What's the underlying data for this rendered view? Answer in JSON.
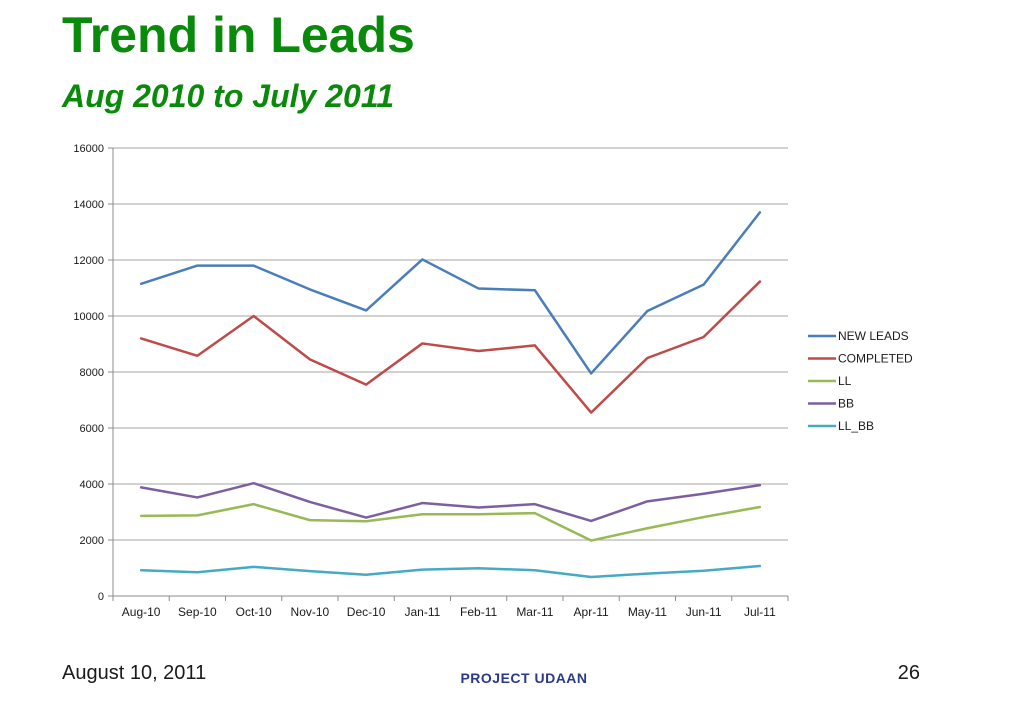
{
  "slide": {
    "title": "Trend in Leads",
    "subtitle": "Aug 2010 to July 2011",
    "date": "August 10, 2011",
    "project": "PROJECT UDAAN",
    "page_number": "26"
  },
  "chart_data": {
    "type": "line",
    "categories": [
      "Aug-10",
      "Sep-10",
      "Oct-10",
      "Nov-10",
      "Dec-10",
      "Jan-11",
      "Feb-11",
      "Mar-11",
      "Apr-11",
      "May-11",
      "Jun-11",
      "Jul-11"
    ],
    "ylim": [
      0,
      16000
    ],
    "yticks": [
      0,
      2000,
      4000,
      6000,
      8000,
      10000,
      12000,
      14000,
      16000
    ],
    "grid": true,
    "legend_position": "right",
    "series": [
      {
        "name": "NEW LEADS",
        "color": "#4a7ebb",
        "values": [
          11150,
          11800,
          11800,
          10950,
          10200,
          12020,
          10980,
          10920,
          7950,
          10180,
          11120,
          13700
        ]
      },
      {
        "name": "COMPLETED",
        "color": "#be4b48",
        "values": [
          9200,
          8580,
          10000,
          8450,
          7550,
          9020,
          8750,
          8950,
          6550,
          8500,
          9250,
          11230
        ]
      },
      {
        "name": "LL",
        "color": "#98b954",
        "values": [
          2860,
          2880,
          3280,
          2710,
          2670,
          2920,
          2920,
          2960,
          1980,
          2420,
          2820,
          3180
        ]
      },
      {
        "name": "BB",
        "color": "#7d5fa0",
        "values": [
          3880,
          3520,
          4030,
          3360,
          2800,
          3320,
          3160,
          3280,
          2680,
          3380,
          3650,
          3960
        ]
      },
      {
        "name": "LL_BB",
        "color": "#46aac5",
        "values": [
          920,
          850,
          1040,
          890,
          760,
          940,
          990,
          920,
          680,
          800,
          900,
          1070
        ]
      }
    ]
  }
}
